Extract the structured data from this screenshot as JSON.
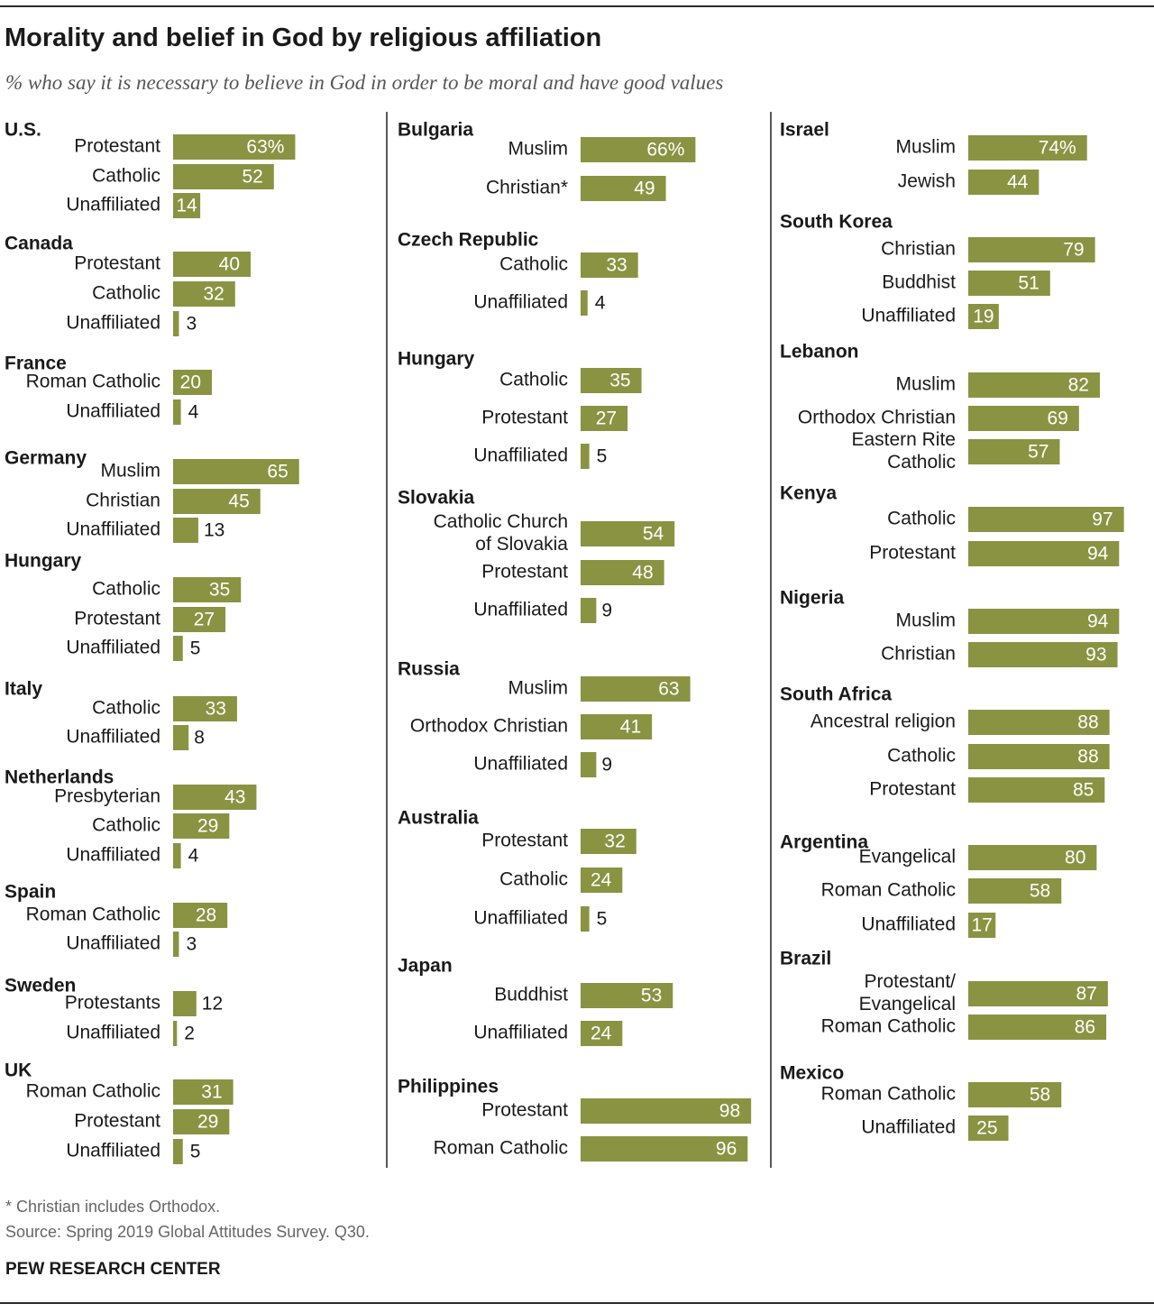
{
  "title": "Morality and belief in God by religious affiliation",
  "subtitle": "% who say it is necessary to believe in God in order to be moral and have good values",
  "footnote": "* Christian includes Orthodox.",
  "source": "Source: Spring 2019 Global Attitudes Survey. Q30.",
  "brand": "PEW RESEARCH CENTER",
  "colors": {
    "bar": "#8a9342",
    "bar_text": "#ffffff",
    "outside_text": "#1a1a1a"
  },
  "chart_data": {
    "type": "bar",
    "orientation": "horizontal",
    "unit": "%",
    "xlim": [
      0,
      100
    ],
    "columns": [
      {
        "groups": [
          {
            "country": "U.S.",
            "rows": [
              {
                "category": "Protestant",
                "value": 63,
                "label": "63%"
              },
              {
                "category": "Catholic",
                "value": 52,
                "label": "52"
              },
              {
                "category": "Unaffiliated",
                "value": 14,
                "label": "14"
              }
            ]
          },
          {
            "country": "Canada",
            "rows": [
              {
                "category": "Protestant",
                "value": 40,
                "label": "40"
              },
              {
                "category": "Catholic",
                "value": 32,
                "label": "32"
              },
              {
                "category": "Unaffiliated",
                "value": 3,
                "label": "3"
              }
            ]
          },
          {
            "country": "France",
            "rows": [
              {
                "category": "Roman Catholic",
                "value": 20,
                "label": "20"
              },
              {
                "category": "Unaffiliated",
                "value": 4,
                "label": "4"
              }
            ]
          },
          {
            "country": "Germany",
            "rows": [
              {
                "category": "Muslim",
                "value": 65,
                "label": "65"
              },
              {
                "category": "Christian",
                "value": 45,
                "label": "45"
              },
              {
                "category": "Unaffiliated",
                "value": 13,
                "label": "13"
              }
            ]
          },
          {
            "country": "Hungary",
            "rows": [
              {
                "category": "Catholic",
                "value": 35,
                "label": "35"
              },
              {
                "category": "Protestant",
                "value": 27,
                "label": "27"
              },
              {
                "category": "Unaffiliated",
                "value": 5,
                "label": "5"
              }
            ]
          },
          {
            "country": "Italy",
            "rows": [
              {
                "category": "Catholic",
                "value": 33,
                "label": "33"
              },
              {
                "category": "Unaffiliated",
                "value": 8,
                "label": "8"
              }
            ]
          },
          {
            "country": "Netherlands",
            "rows": [
              {
                "category": "Presbyterian",
                "value": 43,
                "label": "43"
              },
              {
                "category": "Catholic",
                "value": 29,
                "label": "29"
              },
              {
                "category": "Unaffiliated",
                "value": 4,
                "label": "4"
              }
            ]
          },
          {
            "country": "Spain",
            "rows": [
              {
                "category": "Roman Catholic",
                "value": 28,
                "label": "28"
              },
              {
                "category": "Unaffiliated",
                "value": 3,
                "label": "3"
              }
            ]
          },
          {
            "country": "Sweden",
            "rows": [
              {
                "category": "Protestants",
                "value": 12,
                "label": "12"
              },
              {
                "category": "Unaffiliated",
                "value": 2,
                "label": "2"
              }
            ]
          },
          {
            "country": "UK",
            "rows": [
              {
                "category": "Roman Catholic",
                "value": 31,
                "label": "31"
              },
              {
                "category": "Protestant",
                "value": 29,
                "label": "29"
              },
              {
                "category": "Unaffiliated",
                "value": 5,
                "label": "5"
              }
            ]
          }
        ]
      },
      {
        "groups": [
          {
            "country": "Bulgaria",
            "rows": [
              {
                "category": "Muslim",
                "value": 66,
                "label": "66%"
              },
              {
                "category": "Christian*",
                "value": 49,
                "label": "49"
              }
            ]
          },
          {
            "country": "Czech Republic",
            "rows": [
              {
                "category": "Catholic",
                "value": 33,
                "label": "33"
              },
              {
                "category": "Unaffiliated",
                "value": 4,
                "label": "4"
              }
            ]
          },
          {
            "country": "Hungary",
            "rows": [
              {
                "category": "Catholic",
                "value": 35,
                "label": "35"
              },
              {
                "category": "Protestant",
                "value": 27,
                "label": "27"
              },
              {
                "category": "Unaffiliated",
                "value": 5,
                "label": "5"
              }
            ]
          },
          {
            "country": "Slovakia",
            "rows": [
              {
                "category": "Catholic Church of Slovakia",
                "lines": [
                  "Catholic Church",
                  "of Slovakia"
                ],
                "value": 54,
                "label": "54"
              },
              {
                "category": "Protestant",
                "value": 48,
                "label": "48"
              },
              {
                "category": "Unaffiliated",
                "value": 9,
                "label": "9"
              }
            ]
          },
          {
            "country": "Russia",
            "rows": [
              {
                "category": "Muslim",
                "value": 63,
                "label": "63"
              },
              {
                "category": "Orthodox Christian",
                "value": 41,
                "label": "41"
              },
              {
                "category": "Unaffiliated",
                "value": 9,
                "label": "9"
              }
            ]
          },
          {
            "country": "Australia",
            "rows": [
              {
                "category": "Protestant",
                "value": 32,
                "label": "32"
              },
              {
                "category": "Catholic",
                "value": 24,
                "label": "24"
              },
              {
                "category": "Unaffiliated",
                "value": 5,
                "label": "5"
              }
            ]
          },
          {
            "country": "Japan",
            "rows": [
              {
                "category": "Buddhist",
                "value": 53,
                "label": "53"
              },
              {
                "category": "Unaffiliated",
                "value": 24,
                "label": "24"
              }
            ]
          },
          {
            "country": "Philippines",
            "rows": [
              {
                "category": "Protestant",
                "value": 98,
                "label": "98"
              },
              {
                "category": "Roman Catholic",
                "value": 96,
                "label": "96"
              }
            ]
          }
        ]
      },
      {
        "groups": [
          {
            "country": "Israel",
            "rows": [
              {
                "category": "Muslim",
                "value": 74,
                "label": "74%"
              },
              {
                "category": "Jewish",
                "value": 44,
                "label": "44"
              }
            ]
          },
          {
            "country": "South Korea",
            "rows": [
              {
                "category": "Christian",
                "value": 79,
                "label": "79"
              },
              {
                "category": "Buddhist",
                "value": 51,
                "label": "51"
              },
              {
                "category": "Unaffiliated",
                "value": 19,
                "label": "19"
              }
            ]
          },
          {
            "country": "Lebanon",
            "rows": [
              {
                "category": "Muslim",
                "value": 82,
                "label": "82"
              },
              {
                "category": "Orthodox Christian",
                "value": 69,
                "label": "69"
              },
              {
                "category": "Eastern Rite Catholic",
                "lines": [
                  "Eastern Rite",
                  "Catholic"
                ],
                "value": 57,
                "label": "57"
              }
            ]
          },
          {
            "country": "Kenya",
            "rows": [
              {
                "category": "Catholic",
                "value": 97,
                "label": "97"
              },
              {
                "category": "Protestant",
                "value": 94,
                "label": "94"
              }
            ]
          },
          {
            "country": "Nigeria",
            "rows": [
              {
                "category": "Muslim",
                "value": 94,
                "label": "94"
              },
              {
                "category": "Christian",
                "value": 93,
                "label": "93"
              }
            ]
          },
          {
            "country": "South Africa",
            "rows": [
              {
                "category": "Ancestral religion",
                "value": 88,
                "label": "88"
              },
              {
                "category": "Catholic",
                "value": 88,
                "label": "88"
              },
              {
                "category": "Protestant",
                "value": 85,
                "label": "85"
              }
            ]
          },
          {
            "country": "Argentina",
            "rows": [
              {
                "category": "Evangelical",
                "value": 80,
                "label": "80"
              },
              {
                "category": "Roman Catholic",
                "value": 58,
                "label": "58"
              },
              {
                "category": "Unaffiliated",
                "value": 17,
                "label": "17"
              }
            ]
          },
          {
            "country": "Brazil",
            "rows": [
              {
                "category": "Protestant/ Evangelical",
                "lines": [
                  "Protestant/",
                  "Evangelical"
                ],
                "value": 87,
                "label": "87"
              },
              {
                "category": "Roman Catholic",
                "value": 86,
                "label": "86"
              }
            ]
          },
          {
            "country": "Mexico",
            "rows": [
              {
                "category": "Roman Catholic",
                "value": 58,
                "label": "58"
              },
              {
                "category": "Unaffiliated",
                "value": 25,
                "label": "25"
              }
            ]
          }
        ]
      }
    ]
  }
}
